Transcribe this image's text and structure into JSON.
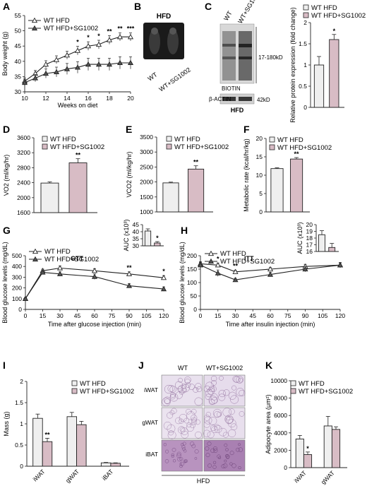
{
  "panels": {
    "A": {
      "label": "A"
    },
    "B": {
      "label": "B",
      "header": "HFD",
      "group_labels": [
        "WT",
        "WT+SG1002"
      ]
    },
    "C": {
      "label": "C",
      "lane_labels": [
        "WT",
        "WT+SG1002"
      ],
      "band_labels": {
        "biotin": "BIOTIN",
        "actin": "β-ACTIN",
        "size_biotin": "17-180kD",
        "size_actin": "42kD"
      },
      "footer": "HFD"
    },
    "D": {
      "label": "D"
    },
    "E": {
      "label": "E"
    },
    "F": {
      "label": "F"
    },
    "G": {
      "label": "G"
    },
    "H": {
      "label": "H"
    },
    "I": {
      "label": "I"
    },
    "J": {
      "label": "J",
      "col_labels": [
        "WT",
        "WT+SG1002"
      ],
      "row_labels": [
        "iWAT",
        "gWAT",
        "iBAT"
      ],
      "footer": "HFD"
    },
    "K": {
      "label": "K"
    }
  },
  "legend": {
    "wt": "WT HFD",
    "sg": "WT HFD+SG1002"
  },
  "colors": {
    "wt_fill": "#efefef",
    "sg_fill": "#d8bcc5",
    "line": "#222222"
  },
  "chart_data": [
    {
      "panel": "A",
      "type": "line",
      "xlabel": "Weeks on diet",
      "ylabel": "Body weight (g)",
      "xlim": [
        10,
        20
      ],
      "ylim": [
        30,
        55
      ],
      "xticks": [
        10,
        12,
        14,
        16,
        18,
        20
      ],
      "yticks": [
        30,
        35,
        40,
        45,
        50,
        55
      ],
      "x": [
        10,
        11,
        12,
        13,
        14,
        15,
        16,
        17,
        18,
        19,
        20
      ],
      "series": [
        {
          "name": "WT HFD",
          "values": [
            33.5,
            36,
            39,
            40.5,
            42,
            43.5,
            45,
            45.5,
            47,
            48,
            48
          ],
          "errors": [
            1,
            1,
            1.2,
            1.3,
            1.3,
            1.4,
            1.4,
            1.4,
            1.4,
            1.3,
            1.3
          ]
        },
        {
          "name": "WT HFD+SG1002",
          "values": [
            33,
            34.5,
            36,
            36.5,
            37.5,
            38,
            39,
            39,
            39,
            39.5,
            39.5
          ],
          "errors": [
            1,
            1.2,
            1.5,
            1.6,
            1.8,
            1.9,
            2,
            2,
            2,
            2,
            2
          ]
        }
      ],
      "annotations": [
        {
          "x": 15,
          "text": "*"
        },
        {
          "x": 16,
          "text": "*"
        },
        {
          "x": 17,
          "text": "*"
        },
        {
          "x": 18,
          "text": "**"
        },
        {
          "x": 19,
          "text": "**"
        },
        {
          "x": 20,
          "text": "***"
        }
      ]
    },
    {
      "panel": "C",
      "type": "bar",
      "ylabel": "Relative protein expression (fold change)",
      "ylim": [
        0,
        2
      ],
      "yticks": [
        0,
        0.5,
        1,
        1.5,
        2
      ],
      "categories": [
        "WT HFD",
        "WT HFD+SG1002"
      ],
      "values": [
        1.0,
        1.6
      ],
      "errors": [
        0.2,
        0.12
      ],
      "annotations": [
        {
          "index": 1,
          "text": "*"
        }
      ]
    },
    {
      "panel": "D",
      "type": "bar",
      "ylabel": "VO2 (ml/kg/hr)",
      "ylim": [
        1600,
        3600
      ],
      "yticks": [
        1600,
        2000,
        2400,
        2800,
        3200,
        3600
      ],
      "categories": [
        "WT HFD",
        "WT HFD+SG1002"
      ],
      "values": [
        2390,
        2930
      ],
      "errors": [
        30,
        110
      ],
      "annotations": [
        {
          "index": 1,
          "text": "**"
        }
      ]
    },
    {
      "panel": "E",
      "type": "bar",
      "ylabel": "VCO2 (ml/kg/hr)",
      "ylim": [
        1000,
        3500
      ],
      "yticks": [
        1000,
        1500,
        2000,
        2500,
        3000,
        3500
      ],
      "categories": [
        "WT HFD",
        "WT HFD+SG1002"
      ],
      "values": [
        1970,
        2430
      ],
      "errors": [
        25,
        110
      ],
      "annotations": [
        {
          "index": 1,
          "text": "**"
        }
      ]
    },
    {
      "panel": "F",
      "type": "bar",
      "ylabel": "Metabolic rate (kcal/hr/kg)",
      "ylim": [
        0,
        20
      ],
      "yticks": [
        0,
        5,
        10,
        15,
        20
      ],
      "categories": [
        "WT HFD",
        "WT HFD+SG1002"
      ],
      "values": [
        11.8,
        14.4
      ],
      "errors": [
        0.2,
        0.4
      ],
      "annotations": [
        {
          "index": 1,
          "text": "**"
        }
      ]
    },
    {
      "panel": "G",
      "type": "line",
      "title": "GTT",
      "xlabel": "Time after glucose injection (min)",
      "ylabel": "Blood glucose levels (mg/dL)",
      "xlim": [
        0,
        120
      ],
      "ylim": [
        0,
        500
      ],
      "xticks": [
        0,
        15,
        30,
        45,
        60,
        75,
        90,
        105,
        120
      ],
      "yticks": [
        0,
        100,
        200,
        300,
        400,
        500
      ],
      "x": [
        0,
        15,
        30,
        60,
        90,
        120
      ],
      "series": [
        {
          "name": "WT HFD",
          "values": [
            100,
            360,
            385,
            360,
            330,
            295
          ],
          "errors": [
            10,
            15,
            20,
            20,
            20,
            20
          ]
        },
        {
          "name": "WT HFD+SG1002",
          "values": [
            100,
            345,
            330,
            305,
            220,
            190
          ],
          "errors": [
            10,
            15,
            20,
            25,
            20,
            20
          ]
        }
      ],
      "annotations": [
        {
          "x": 90,
          "text": "**"
        },
        {
          "x": 120,
          "text": "*"
        }
      ]
    },
    {
      "panel": "G",
      "type": "bar",
      "ylabel": "AUC (x10³)",
      "ylim": [
        30,
        45
      ],
      "yticks": [
        30,
        35,
        40,
        45
      ],
      "categories": [
        "WT HFD",
        "WT HFD+SG1002"
      ],
      "values": [
        40.5,
        32
      ],
      "errors": [
        1.5,
        1
      ],
      "annotations": [
        {
          "index": 1,
          "text": "*"
        }
      ]
    },
    {
      "panel": "H",
      "type": "line",
      "title": "ITT",
      "xlabel": "Time after insulin injection (min)",
      "ylabel": "Blood glucose levels (mg/dL)",
      "xlim": [
        0,
        120
      ],
      "ylim": [
        0,
        200
      ],
      "xticks": [
        0,
        15,
        30,
        45,
        60,
        75,
        90,
        105,
        120
      ],
      "yticks": [
        0,
        50,
        100,
        150,
        200
      ],
      "x": [
        0,
        15,
        30,
        60,
        90,
        120
      ],
      "series": [
        {
          "name": "WT HFD",
          "values": [
            170,
            165,
            140,
            150,
            160,
            165
          ],
          "errors": [
            8,
            8,
            6,
            6,
            8,
            8
          ]
        },
        {
          "name": "WT HFD+SG1002",
          "values": [
            165,
            135,
            110,
            130,
            150,
            165
          ],
          "errors": [
            10,
            12,
            6,
            8,
            10,
            10
          ]
        }
      ],
      "annotations": [
        {
          "x": 15,
          "text": "*"
        },
        {
          "x": 30,
          "text": "**"
        }
      ]
    },
    {
      "panel": "H",
      "type": "bar",
      "ylabel": "AUC (x10³)",
      "ylim": [
        16,
        20
      ],
      "yticks": [
        16,
        17,
        18,
        19,
        20
      ],
      "categories": [
        "WT HFD",
        "WT HFD+SG1002"
      ],
      "values": [
        18.5,
        16.6
      ],
      "errors": [
        0.6,
        0.6
      ]
    },
    {
      "panel": "I",
      "type": "bar",
      "ylabel": "Mass (g)",
      "ylim": [
        0,
        2
      ],
      "yticks": [
        0,
        0.5,
        1,
        1.5,
        2
      ],
      "categories": [
        "iWAT",
        "gWAT",
        "iBAT"
      ],
      "series": [
        {
          "name": "WT HFD",
          "values": [
            1.13,
            1.17,
            0.08
          ],
          "errors": [
            0.1,
            0.1,
            0.01
          ]
        },
        {
          "name": "WT HFD+SG1002",
          "values": [
            0.58,
            0.98,
            0.07
          ],
          "errors": [
            0.08,
            0.08,
            0.01
          ]
        }
      ],
      "annotations": [
        {
          "index": 0,
          "text": "**"
        }
      ]
    },
    {
      "panel": "K",
      "type": "bar",
      "ylabel": "Adipocyte area (μm²)",
      "ylim": [
        0,
        10000
      ],
      "yticks": [
        0,
        2000,
        4000,
        6000,
        8000,
        10000
      ],
      "categories": [
        "iWAT",
        "gWAT"
      ],
      "series": [
        {
          "name": "WT HFD",
          "values": [
            3300,
            4800
          ],
          "errors": [
            400,
            1100
          ]
        },
        {
          "name": "WT HFD+SG1002",
          "values": [
            1500,
            4400
          ],
          "errors": [
            300,
            300
          ]
        }
      ],
      "annotations": [
        {
          "index": 0,
          "text": "*"
        }
      ]
    }
  ]
}
